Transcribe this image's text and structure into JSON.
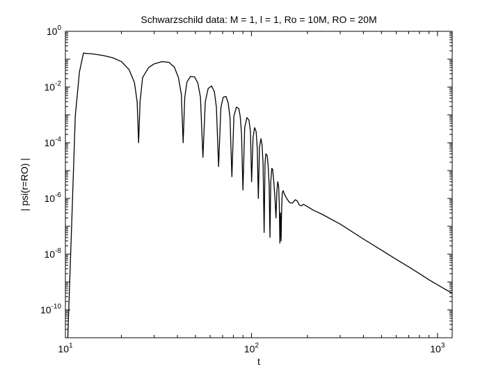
{
  "chart_data": {
    "type": "line",
    "title": "Schwarzschild data: M = 1, l = 1, Ro = 10M, RO = 20M",
    "xlabel": "t",
    "ylabel": "| psi(r=RO) |",
    "xscale": "log",
    "yscale": "log",
    "xlim": [
      10,
      1200
    ],
    "ylim": [
      1e-11,
      1
    ],
    "grid": false,
    "line_color": "#000000",
    "x_ticks": [
      {
        "value": 10,
        "base": "10",
        "exp": "1"
      },
      {
        "value": 100,
        "base": "10",
        "exp": "2"
      },
      {
        "value": 1000,
        "base": "10",
        "exp": "3"
      }
    ],
    "y_ticks": [
      {
        "value": 1,
        "base": "10",
        "exp": "0"
      },
      {
        "value": 0.01,
        "base": "10",
        "exp": "-2"
      },
      {
        "value": 0.0001,
        "base": "10",
        "exp": "-4"
      },
      {
        "value": 1e-06,
        "base": "10",
        "exp": "-6"
      },
      {
        "value": 1e-08,
        "base": "10",
        "exp": "-8"
      },
      {
        "value": 1e-10,
        "base": "10",
        "exp": "-10"
      }
    ],
    "series": [
      {
        "x": [
          10.3,
          10.8,
          11.3,
          11.9,
          12.5,
          14,
          16,
          18,
          20,
          22,
          23.5,
          24.3,
          24.75,
          25.2,
          26,
          28,
          30,
          33,
          36,
          38.5,
          40.5,
          42,
          42.95,
          43.8,
          45,
          47,
          49.5,
          51.5,
          53.2,
          54.85,
          56.5,
          58.5,
          61,
          63.2,
          64.8,
          66.6,
          68.5,
          70.5,
          73,
          75,
          76.7,
          78.5,
          80.5,
          83,
          85.5,
          87,
          88.5,
          90,
          92,
          94.5,
          97,
          98.8,
          100.2,
          102,
          104,
          106,
          107.5,
          108.9,
          110.5,
          112.5,
          114,
          115.5,
          117,
          118.3,
          119.5,
          121.5,
          123,
          124.5,
          125.8,
          127,
          128.7,
          130,
          131.5,
          133.5,
          135.5,
          137,
          138.5,
          140,
          141.2,
          142.2,
          143.2,
          144.3,
          145.4,
          146.5,
          148,
          150,
          154,
          160,
          166,
          172,
          176,
          181,
          186,
          190,
          197,
          205,
          215,
          240,
          300,
          400,
          500,
          600,
          700,
          800,
          900,
          1000,
          1100,
          1200
        ],
        "y": [
          1e-11,
          1e-07,
          0.0009,
          0.035,
          0.165,
          0.155,
          0.135,
          0.112,
          0.082,
          0.042,
          0.0145,
          0.003,
          0.0001,
          0.003,
          0.022,
          0.05,
          0.068,
          0.082,
          0.077,
          0.052,
          0.022,
          0.0055,
          0.0001,
          0.0042,
          0.015,
          0.024,
          0.023,
          0.014,
          0.0043,
          3e-05,
          0.003,
          0.0088,
          0.011,
          0.0068,
          0.0019,
          1.4e-05,
          0.0018,
          0.0043,
          0.0046,
          0.0027,
          0.0008,
          6e-06,
          0.0009,
          0.0019,
          0.0017,
          0.0009,
          0.0002,
          2e-06,
          0.00035,
          0.0008,
          0.00065,
          0.00025,
          4e-06,
          0.00015,
          0.00035,
          0.00025,
          6e-05,
          1e-06,
          7e-05,
          0.00014,
          8.5e-05,
          1.8e-05,
          6e-08,
          1.8e-05,
          4e-05,
          3.5e-05,
          1.5e-05,
          3e-06,
          4e-08,
          4e-06,
          1.2e-05,
          1.1e-05,
          5e-06,
          1.3e-06,
          2e-07,
          1.8e-06,
          4e-06,
          2.8e-06,
          6e-07,
          2.5e-08,
          3e-07,
          3e-08,
          5e-07,
          1.6e-06,
          1.9e-06,
          1.5e-06,
          1.05e-06,
          7.2e-07,
          6.8e-07,
          9e-07,
          8.2e-07,
          5.8e-07,
          5.4e-07,
          6.2e-07,
          5.4e-07,
          4.6e-07,
          3.8e-07,
          2.7e-07,
          1.2e-07,
          3.5e-08,
          1.4e-08,
          6.5e-09,
          3.5e-09,
          2e-09,
          1.2e-09,
          8e-10,
          5.5e-10,
          4e-10
        ]
      }
    ]
  }
}
